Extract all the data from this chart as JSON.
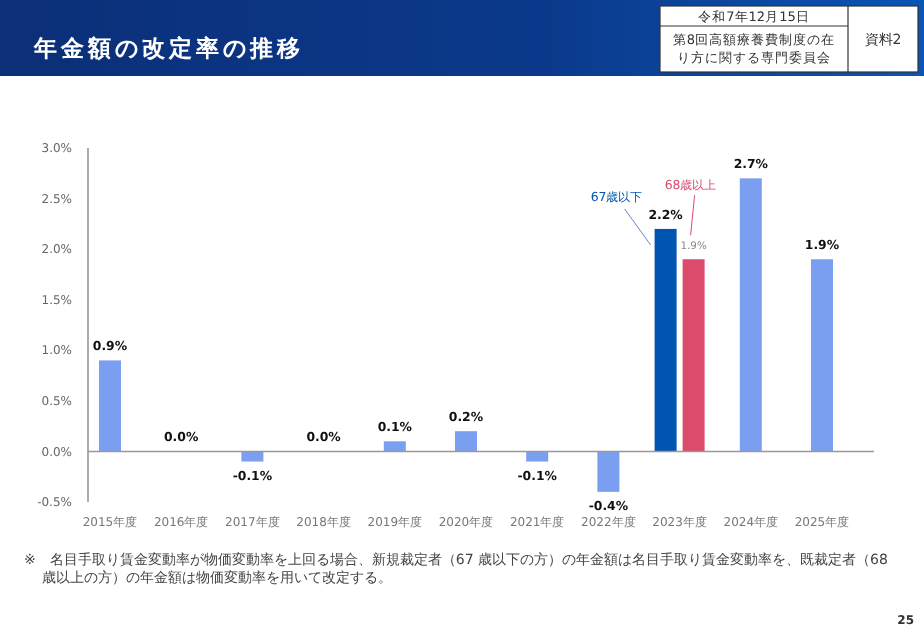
{
  "chart_data": {
    "type": "bar",
    "title": "年金額の改定率の推移",
    "categories": [
      "2015年度",
      "2016年度",
      "2017年度",
      "2018年度",
      "2019年度",
      "2020年度",
      "2021年度",
      "2022年度",
      "2023年度",
      "2024年度",
      "2025年度"
    ],
    "series": [
      {
        "color": "#7b9ff0",
        "values": [
          0.9,
          0.0,
          -0.1,
          0.0,
          0.1,
          0.2,
          -0.1,
          -0.4,
          null,
          2.7,
          1.9
        ],
        "value_labels": [
          "0.9%",
          "0.0%",
          "-0.1%",
          "0.0%",
          "0.1%",
          "0.2%",
          "-0.1%",
          "-0.4%",
          null,
          "2.7%",
          "1.9%"
        ]
      },
      {
        "name": "67歳以下",
        "color": "#0055b0",
        "values": [
          null,
          null,
          null,
          null,
          null,
          null,
          null,
          null,
          2.2,
          null,
          null
        ],
        "value_labels": [
          null,
          null,
          null,
          null,
          null,
          null,
          null,
          null,
          "2.2%",
          null,
          null
        ]
      },
      {
        "name": "68歳以上",
        "color": "#dc4a6c",
        "values": [
          null,
          null,
          null,
          null,
          null,
          null,
          null,
          null,
          1.9,
          null,
          null
        ],
        "value_labels": [
          null,
          null,
          null,
          null,
          null,
          null,
          null,
          null,
          "1.9%",
          null,
          null
        ]
      }
    ],
    "ylim": [
      -0.5,
      3.0
    ],
    "yticks": [
      {
        "value": -0.5,
        "label": "-0.5%"
      },
      {
        "value": 0,
        "label": "0.0%"
      },
      {
        "value": 0.5,
        "label": "0.5%"
      },
      {
        "value": 1,
        "label": "1.0%"
      },
      {
        "value": 1.5,
        "label": "1.5%"
      },
      {
        "value": 2,
        "label": "2.0%"
      },
      {
        "value": 2.5,
        "label": "2.5%"
      },
      {
        "value": 3,
        "label": "3.0%"
      }
    ],
    "annotations": [
      "令和7年12月15日",
      "第8回高額療養費制度の在り方に関する専門委員会",
      "資料2",
      "※　名目手取り賃金変動率が物価変動率を上回る場合、新規裁定者（67 歳以下の方）の年金額は名目手取り賃金変動率を、既裁定者（68 歳以上の方）の年金額は物価変動率を用いて改定する。",
      "25"
    ]
  }
}
